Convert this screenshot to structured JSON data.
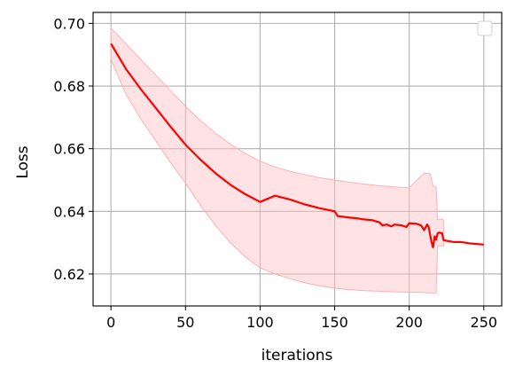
{
  "chart_data": {
    "type": "line",
    "title": "",
    "xlabel": "iterations",
    "ylabel": "Loss",
    "xlim": [
      -12,
      262
    ],
    "ylim": [
      0.6098,
      0.7035
    ],
    "xticks": [
      0,
      50,
      100,
      150,
      200,
      250
    ],
    "yticks": [
      0.62,
      0.64,
      0.66,
      0.68,
      0.7
    ],
    "ytick_labels": [
      "0.62",
      "0.64",
      "0.66",
      "0.68",
      "0.70"
    ],
    "grid": true,
    "legend": "top-right",
    "colors": {
      "line": "#ff0000",
      "band": "#ffc0c4",
      "band_edge": "#ffb0b4"
    },
    "series": [
      {
        "x": [
          0,
          10,
          20,
          30,
          40,
          50,
          60,
          70,
          80,
          90,
          100,
          110,
          120,
          130,
          140,
          150,
          152,
          160,
          165,
          168,
          175,
          180,
          182,
          185,
          188,
          190,
          195,
          198,
          200,
          205,
          208,
          210,
          212,
          213,
          215,
          216,
          217,
          218,
          219,
          220,
          222,
          223,
          225,
          230,
          235,
          240,
          245,
          250
        ],
        "y": [
          0.6935,
          0.6855,
          0.679,
          0.673,
          0.667,
          0.6613,
          0.6565,
          0.6522,
          0.6485,
          0.6455,
          0.643,
          0.645,
          0.6438,
          0.6422,
          0.641,
          0.64,
          0.6385,
          0.638,
          0.6378,
          0.6375,
          0.6372,
          0.6365,
          0.6355,
          0.6358,
          0.6352,
          0.6358,
          0.6355,
          0.635,
          0.6362,
          0.636,
          0.6355,
          0.634,
          0.6358,
          0.635,
          0.63,
          0.6285,
          0.632,
          0.631,
          0.633,
          0.6332,
          0.633,
          0.6308,
          0.6306,
          0.6302,
          0.6302,
          0.6298,
          0.6296,
          0.6294
        ],
        "band_x": [
          0,
          10,
          20,
          30,
          40,
          50,
          60,
          70,
          80,
          90,
          100,
          110,
          120,
          130,
          140,
          150,
          160,
          170,
          180,
          190,
          200,
          210,
          212,
          214,
          216,
          218,
          219,
          220,
          222,
          223
        ],
        "band_upper": [
          0.6985,
          0.6935,
          0.6885,
          0.6835,
          0.6785,
          0.6735,
          0.669,
          0.665,
          0.6615,
          0.6585,
          0.656,
          0.6542,
          0.6528,
          0.6517,
          0.6507,
          0.65,
          0.6493,
          0.6487,
          0.6482,
          0.6478,
          0.6475,
          0.6522,
          0.6521,
          0.652,
          0.648,
          0.6477,
          0.6373,
          0.6375,
          0.6375,
          0.6373
        ],
        "band_lower": [
          0.6885,
          0.6775,
          0.6695,
          0.6625,
          0.6555,
          0.649,
          0.642,
          0.6355,
          0.63,
          0.6255,
          0.622,
          0.62,
          0.6185,
          0.6172,
          0.6162,
          0.6155,
          0.615,
          0.6147,
          0.6145,
          0.6143,
          0.6142,
          0.6141,
          0.614,
          0.614,
          0.614,
          0.614,
          0.629,
          0.629,
          0.629,
          0.629
        ]
      }
    ]
  }
}
